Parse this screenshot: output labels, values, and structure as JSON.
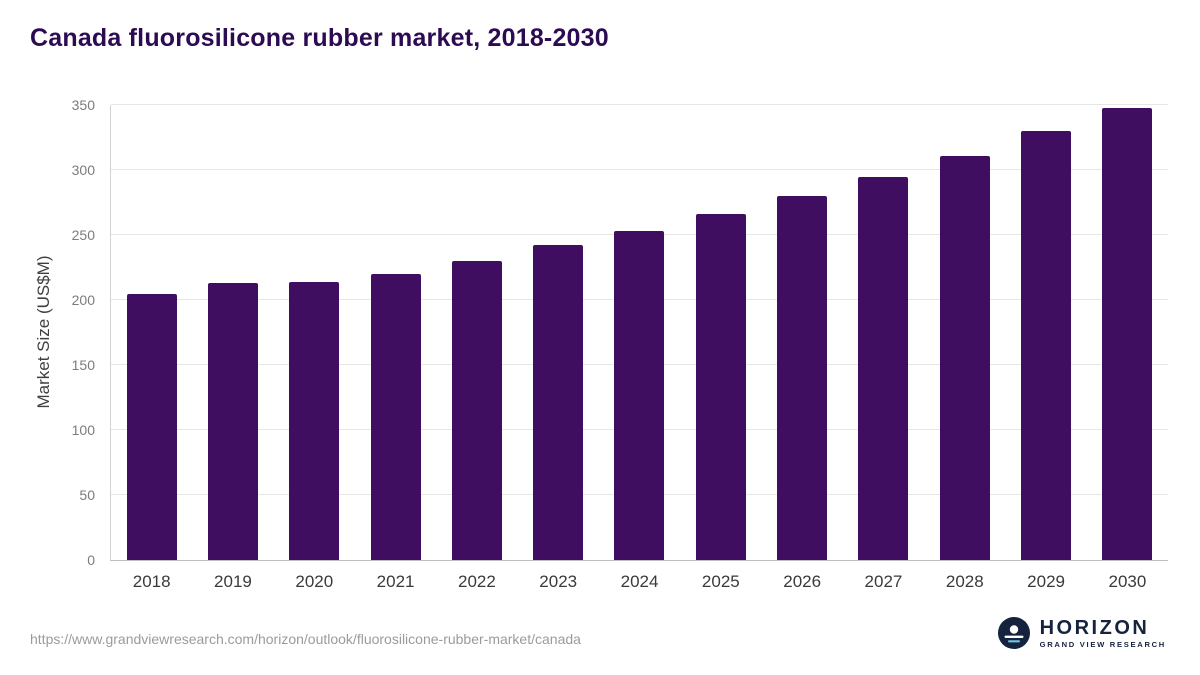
{
  "title": "Canada fluorosilicone rubber market, 2018-2030",
  "source_url": "https://www.grandviewresearch.com/horizon/outlook/fluorosilicone-rubber-market/canada",
  "logo": {
    "name": "HORIZON",
    "subtitle": "GRAND VIEW RESEARCH"
  },
  "colors": {
    "bar": "#400e60",
    "title_text": "#2d0b52",
    "gridline": "#e6e6e6",
    "axis_line": "#bdbdbd",
    "logo_navy": "#15233f"
  },
  "chart_data": {
    "type": "bar",
    "title": "Canada fluorosilicone rubber market, 2018-2030",
    "categories": [
      "2018",
      "2019",
      "2020",
      "2021",
      "2022",
      "2023",
      "2024",
      "2025",
      "2026",
      "2027",
      "2028",
      "2029",
      "2030"
    ],
    "values": [
      205,
      213,
      214,
      220,
      230,
      242,
      253,
      266,
      280,
      295,
      311,
      330,
      348
    ],
    "xlabel": "",
    "ylabel": "Market Size (US$M)",
    "ylim": [
      0,
      350
    ],
    "yticks": [
      0,
      50,
      100,
      150,
      200,
      250,
      300,
      350
    ],
    "grid": true,
    "legend": false,
    "bar_color": "#400e60"
  }
}
